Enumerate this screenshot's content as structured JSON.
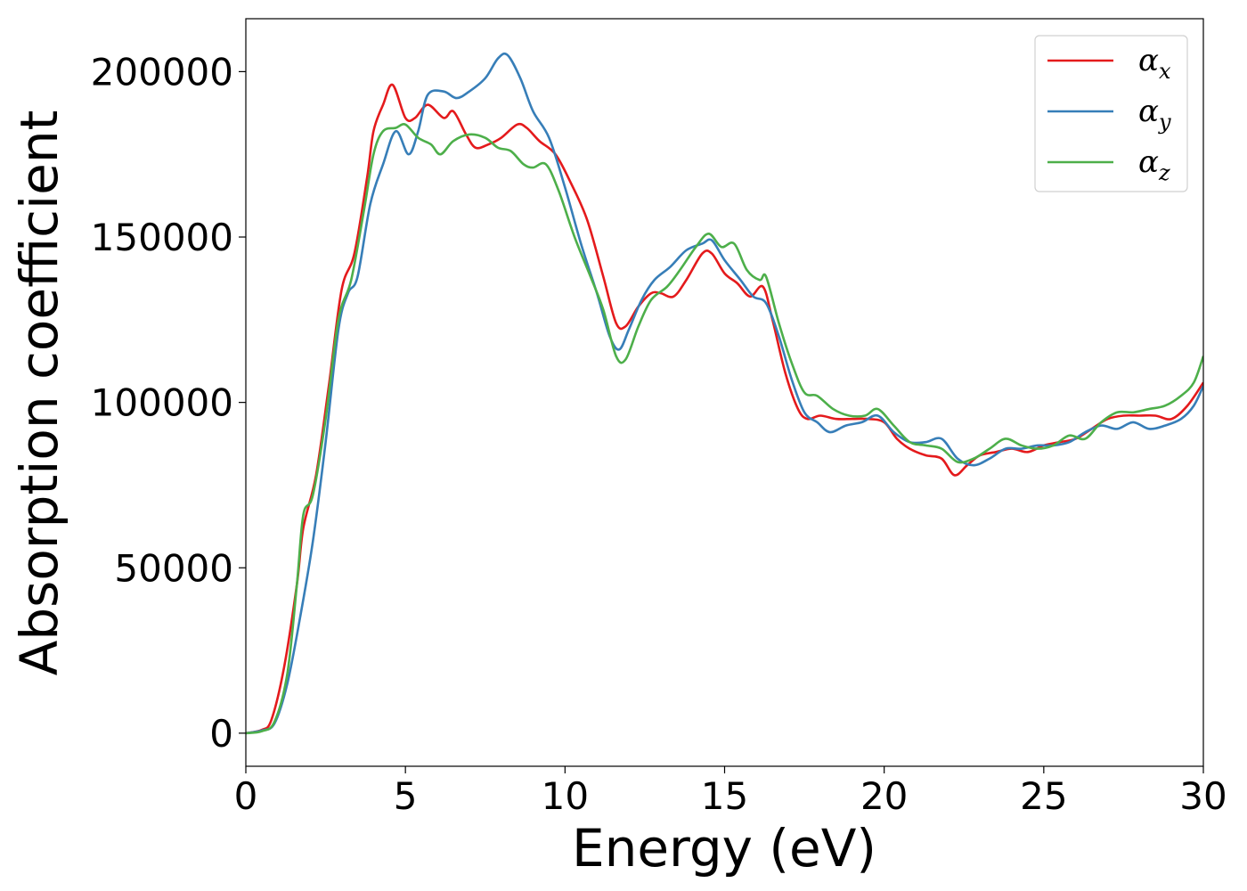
{
  "chart_data": {
    "type": "line",
    "title": "",
    "xlabel": "Energy (eV)",
    "ylabel": "Absorption coefficient",
    "xlim": [
      0,
      30
    ],
    "ylim": [
      -10000,
      216000
    ],
    "xticks": [
      0,
      5,
      10,
      15,
      20,
      25,
      30
    ],
    "yticks": [
      0,
      50000,
      100000,
      150000,
      200000
    ],
    "grid": false,
    "legend_placement": "top-right",
    "series": [
      {
        "name": "α_x",
        "symbol": "α",
        "subscript": "x",
        "color": "#e41a1c",
        "points": [
          [
            0,
            0
          ],
          [
            0.5,
            1000
          ],
          [
            0.8,
            4000
          ],
          [
            1.2,
            20000
          ],
          [
            1.6,
            45000
          ],
          [
            1.8,
            62000
          ],
          [
            2.2,
            78000
          ],
          [
            2.6,
            105000
          ],
          [
            3.0,
            134000
          ],
          [
            3.4,
            145000
          ],
          [
            3.8,
            168000
          ],
          [
            4.0,
            182000
          ],
          [
            4.3,
            190000
          ],
          [
            4.6,
            196000
          ],
          [
            5.0,
            186000
          ],
          [
            5.3,
            186000
          ],
          [
            5.7,
            190000
          ],
          [
            6.2,
            186000
          ],
          [
            6.5,
            188000
          ],
          [
            6.9,
            181000
          ],
          [
            7.2,
            177000
          ],
          [
            7.6,
            178000
          ],
          [
            8.0,
            180000
          ],
          [
            8.5,
            184000
          ],
          [
            8.8,
            183000
          ],
          [
            9.2,
            179000
          ],
          [
            9.7,
            175000
          ],
          [
            10.2,
            166000
          ],
          [
            10.7,
            155000
          ],
          [
            11.2,
            138000
          ],
          [
            11.6,
            124000
          ],
          [
            11.9,
            123000
          ],
          [
            12.3,
            129000
          ],
          [
            12.7,
            133000
          ],
          [
            13.0,
            133000
          ],
          [
            13.4,
            132000
          ],
          [
            13.8,
            137000
          ],
          [
            14.3,
            145000
          ],
          [
            14.6,
            145000
          ],
          [
            15.0,
            139000
          ],
          [
            15.4,
            136000
          ],
          [
            15.8,
            132000
          ],
          [
            16.2,
            135000
          ],
          [
            16.5,
            125000
          ],
          [
            16.9,
            109000
          ],
          [
            17.3,
            98000
          ],
          [
            17.6,
            95000
          ],
          [
            18.0,
            96000
          ],
          [
            18.5,
            95000
          ],
          [
            19.0,
            95000
          ],
          [
            19.5,
            95000
          ],
          [
            20.0,
            94000
          ],
          [
            20.4,
            89000
          ],
          [
            20.8,
            86000
          ],
          [
            21.3,
            84000
          ],
          [
            21.8,
            83000
          ],
          [
            22.2,
            78000
          ],
          [
            22.6,
            81000
          ],
          [
            23.0,
            84000
          ],
          [
            23.5,
            85000
          ],
          [
            24.0,
            86000
          ],
          [
            24.5,
            85000
          ],
          [
            25.0,
            87000
          ],
          [
            25.5,
            88000
          ],
          [
            26.0,
            89000
          ],
          [
            26.5,
            92000
          ],
          [
            27.0,
            95000
          ],
          [
            27.5,
            96000
          ],
          [
            28.0,
            96000
          ],
          [
            28.5,
            96000
          ],
          [
            29.0,
            95000
          ],
          [
            29.5,
            99000
          ],
          [
            30.0,
            106000
          ]
        ]
      },
      {
        "name": "α_y",
        "symbol": "α",
        "subscript": "y",
        "color": "#377eb8",
        "points": [
          [
            0,
            0
          ],
          [
            0.5,
            800
          ],
          [
            0.9,
            3000
          ],
          [
            1.3,
            15000
          ],
          [
            1.7,
            35000
          ],
          [
            2.1,
            58000
          ],
          [
            2.5,
            88000
          ],
          [
            2.9,
            122000
          ],
          [
            3.2,
            133000
          ],
          [
            3.5,
            138000
          ],
          [
            3.9,
            160000
          ],
          [
            4.3,
            172000
          ],
          [
            4.7,
            182000
          ],
          [
            5.1,
            175000
          ],
          [
            5.4,
            182000
          ],
          [
            5.7,
            193000
          ],
          [
            6.2,
            194000
          ],
          [
            6.6,
            192000
          ],
          [
            7.0,
            194000
          ],
          [
            7.5,
            198000
          ],
          [
            7.9,
            204000
          ],
          [
            8.2,
            205000
          ],
          [
            8.6,
            198000
          ],
          [
            9.0,
            188000
          ],
          [
            9.5,
            180000
          ],
          [
            10.0,
            165000
          ],
          [
            10.5,
            148000
          ],
          [
            11.0,
            133000
          ],
          [
            11.4,
            120000
          ],
          [
            11.7,
            116000
          ],
          [
            12.0,
            122000
          ],
          [
            12.4,
            131000
          ],
          [
            12.8,
            137000
          ],
          [
            13.3,
            141000
          ],
          [
            13.8,
            146000
          ],
          [
            14.3,
            148000
          ],
          [
            14.6,
            149000
          ],
          [
            15.0,
            143000
          ],
          [
            15.5,
            137000
          ],
          [
            15.9,
            132000
          ],
          [
            16.3,
            130000
          ],
          [
            16.7,
            120000
          ],
          [
            17.1,
            107000
          ],
          [
            17.5,
            97000
          ],
          [
            17.9,
            94000
          ],
          [
            18.3,
            91000
          ],
          [
            18.8,
            93000
          ],
          [
            19.3,
            94000
          ],
          [
            19.8,
            96000
          ],
          [
            20.3,
            91000
          ],
          [
            20.8,
            88000
          ],
          [
            21.3,
            88000
          ],
          [
            21.8,
            89000
          ],
          [
            22.3,
            83000
          ],
          [
            22.8,
            81000
          ],
          [
            23.3,
            83000
          ],
          [
            23.8,
            86000
          ],
          [
            24.3,
            86000
          ],
          [
            24.8,
            87000
          ],
          [
            25.3,
            87000
          ],
          [
            25.8,
            88000
          ],
          [
            26.3,
            91000
          ],
          [
            26.8,
            93000
          ],
          [
            27.3,
            92000
          ],
          [
            27.8,
            94000
          ],
          [
            28.3,
            92000
          ],
          [
            28.8,
            93000
          ],
          [
            29.3,
            95000
          ],
          [
            29.7,
            99000
          ],
          [
            30.0,
            105000
          ]
        ]
      },
      {
        "name": "α_z",
        "symbol": "α",
        "subscript": "z",
        "color": "#4daf4a",
        "points": [
          [
            0,
            0
          ],
          [
            0.5,
            600
          ],
          [
            0.9,
            3500
          ],
          [
            1.3,
            18000
          ],
          [
            1.6,
            45000
          ],
          [
            1.8,
            66000
          ],
          [
            2.1,
            72000
          ],
          [
            2.5,
            95000
          ],
          [
            2.9,
            125000
          ],
          [
            3.3,
            137000
          ],
          [
            3.7,
            158000
          ],
          [
            4.0,
            175000
          ],
          [
            4.3,
            182000
          ],
          [
            4.7,
            183000
          ],
          [
            5.0,
            184000
          ],
          [
            5.4,
            180000
          ],
          [
            5.8,
            178000
          ],
          [
            6.1,
            175000
          ],
          [
            6.5,
            179000
          ],
          [
            7.0,
            181000
          ],
          [
            7.5,
            180000
          ],
          [
            7.9,
            177000
          ],
          [
            8.3,
            176000
          ],
          [
            8.7,
            172000
          ],
          [
            9.0,
            171000
          ],
          [
            9.4,
            172000
          ],
          [
            9.8,
            164000
          ],
          [
            10.3,
            150000
          ],
          [
            10.8,
            138000
          ],
          [
            11.2,
            128000
          ],
          [
            11.6,
            114000
          ],
          [
            11.9,
            113000
          ],
          [
            12.3,
            123000
          ],
          [
            12.7,
            131000
          ],
          [
            13.2,
            135000
          ],
          [
            13.6,
            140000
          ],
          [
            14.1,
            147000
          ],
          [
            14.5,
            151000
          ],
          [
            14.9,
            147000
          ],
          [
            15.3,
            148000
          ],
          [
            15.7,
            140000
          ],
          [
            16.1,
            137000
          ],
          [
            16.3,
            138000
          ],
          [
            16.7,
            124000
          ],
          [
            17.1,
            112000
          ],
          [
            17.5,
            103000
          ],
          [
            17.9,
            102000
          ],
          [
            18.4,
            98000
          ],
          [
            18.9,
            96000
          ],
          [
            19.4,
            96000
          ],
          [
            19.8,
            98000
          ],
          [
            20.3,
            93000
          ],
          [
            20.8,
            88000
          ],
          [
            21.3,
            87000
          ],
          [
            21.8,
            86000
          ],
          [
            22.3,
            82000
          ],
          [
            22.8,
            83000
          ],
          [
            23.3,
            86000
          ],
          [
            23.8,
            89000
          ],
          [
            24.3,
            87000
          ],
          [
            24.8,
            86000
          ],
          [
            25.3,
            87000
          ],
          [
            25.8,
            90000
          ],
          [
            26.3,
            89000
          ],
          [
            26.8,
            94000
          ],
          [
            27.3,
            97000
          ],
          [
            27.8,
            97000
          ],
          [
            28.3,
            98000
          ],
          [
            28.8,
            99000
          ],
          [
            29.3,
            102000
          ],
          [
            29.7,
            106000
          ],
          [
            30.0,
            114000
          ]
        ]
      }
    ]
  }
}
